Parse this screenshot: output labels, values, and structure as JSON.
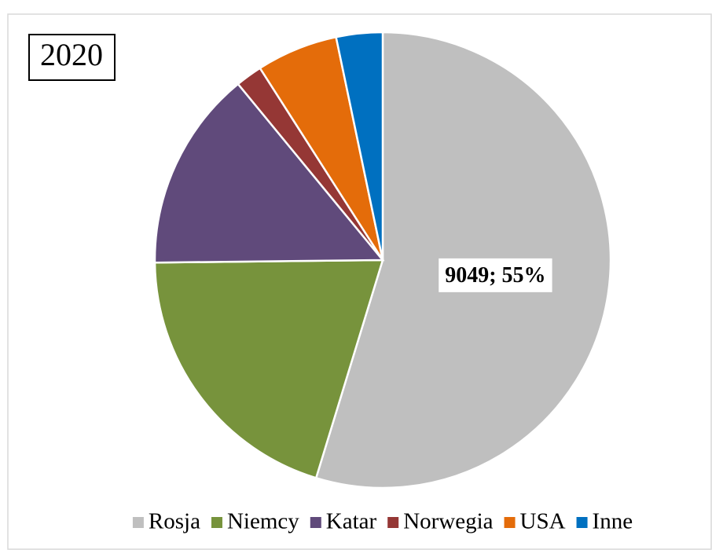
{
  "chart_data": {
    "type": "pie",
    "title": "2020",
    "categories": [
      "Rosja",
      "Niemcy",
      "Katar",
      "Norwegia",
      "USA",
      "Inne"
    ],
    "values": [
      9049,
      3324,
      2353,
      313,
      954,
      543
    ],
    "value_labels": [
      "9049; 55%",
      null,
      null,
      null,
      null,
      null
    ],
    "colors": [
      "#bfbfbf",
      "#77933c",
      "#604a7b",
      "#953735",
      "#e46c0a",
      "#0070c0"
    ],
    "legend": "bottom"
  }
}
